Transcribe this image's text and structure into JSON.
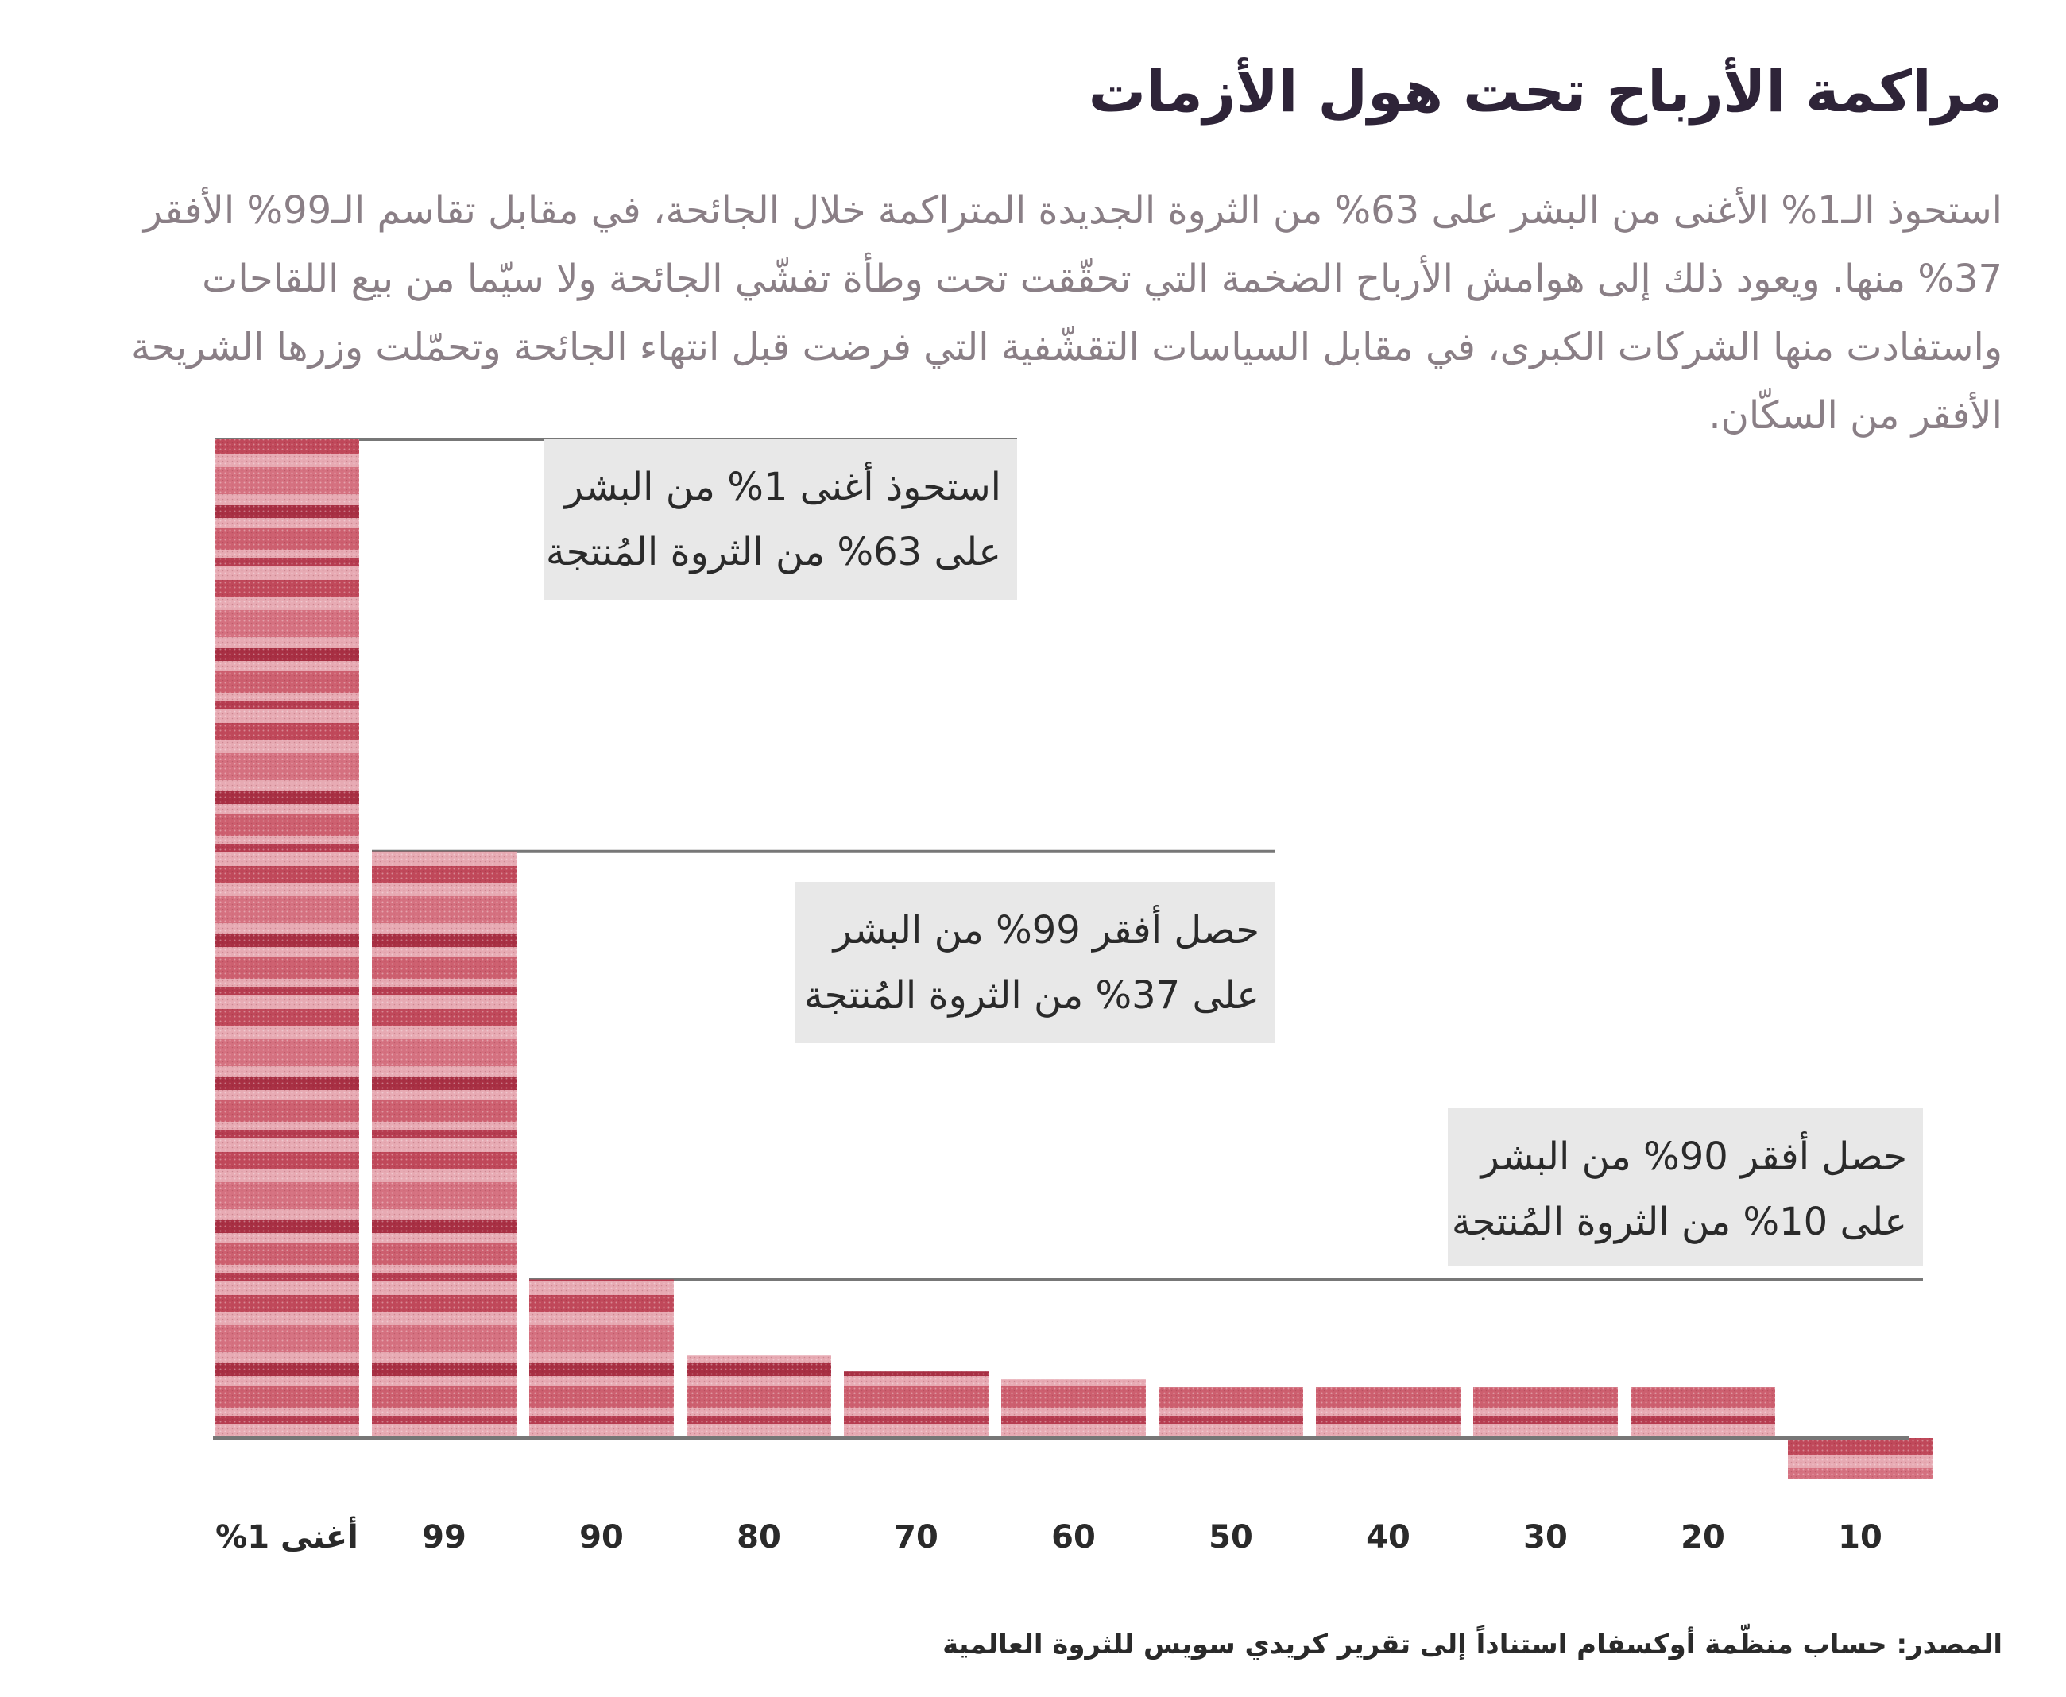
{
  "title": "مراكمة الأرباح تحت هول الأزمات",
  "subtitle": "استحوذ الـ1% الأغنى من البشر على 63% من الثروة الجديدة المتراكمة خلال الجائحة، في مقابل تقاسم الـ99% الأفقر 37% منها. ويعود ذلك إلى هوامش الأرباح الضخمة التي تحقّقت تحت وطأة تفشّي الجائحة ولا سيّما من بيع اللقاحات واستفادت منها الشركات الكبرى، في مقابل السياسات التقشّفية التي فرضت قبل انتهاء الجائحة وتحمّلت وزرها الشريحة الأفقر من السكّان.",
  "annotations": [
    {
      "line1": "استحوذ أغنى 1% من البشر",
      "line2": "على 63% من الثروة المُنتجة"
    },
    {
      "line1": "حصل أفقر 99% من البشر",
      "line2": "على 37% من الثروة المُنتجة"
    },
    {
      "line1": "حصل أفقر 90% من البشر",
      "line2": "على 10% من الثروة المُنتجة"
    }
  ],
  "source": "المصدر: حساب منظّمة أوكسفام استناداً إلى تقرير كريدي سويس للثروة العالمية",
  "colors": {
    "bar": "#c0485a",
    "bar_light": "#e7aab3",
    "bar_dark": "#a82f43",
    "axis": "#777777",
    "annotation_bg": "#e8e8e8",
    "title": "#2e2438",
    "subtitle": "#8a7f86"
  },
  "chart_data": {
    "type": "bar",
    "categories": [
      "أغنى 1%",
      "99",
      "90",
      "80",
      "70",
      "60",
      "50",
      "40",
      "30",
      "20",
      "10"
    ],
    "values": [
      63,
      37,
      10,
      5.2,
      4.2,
      3.7,
      3.2,
      3.2,
      3.2,
      3.2,
      -2.6
    ],
    "ylim": [
      -5,
      63
    ],
    "grid": false,
    "reference_levels": [
      63,
      37,
      10
    ]
  }
}
